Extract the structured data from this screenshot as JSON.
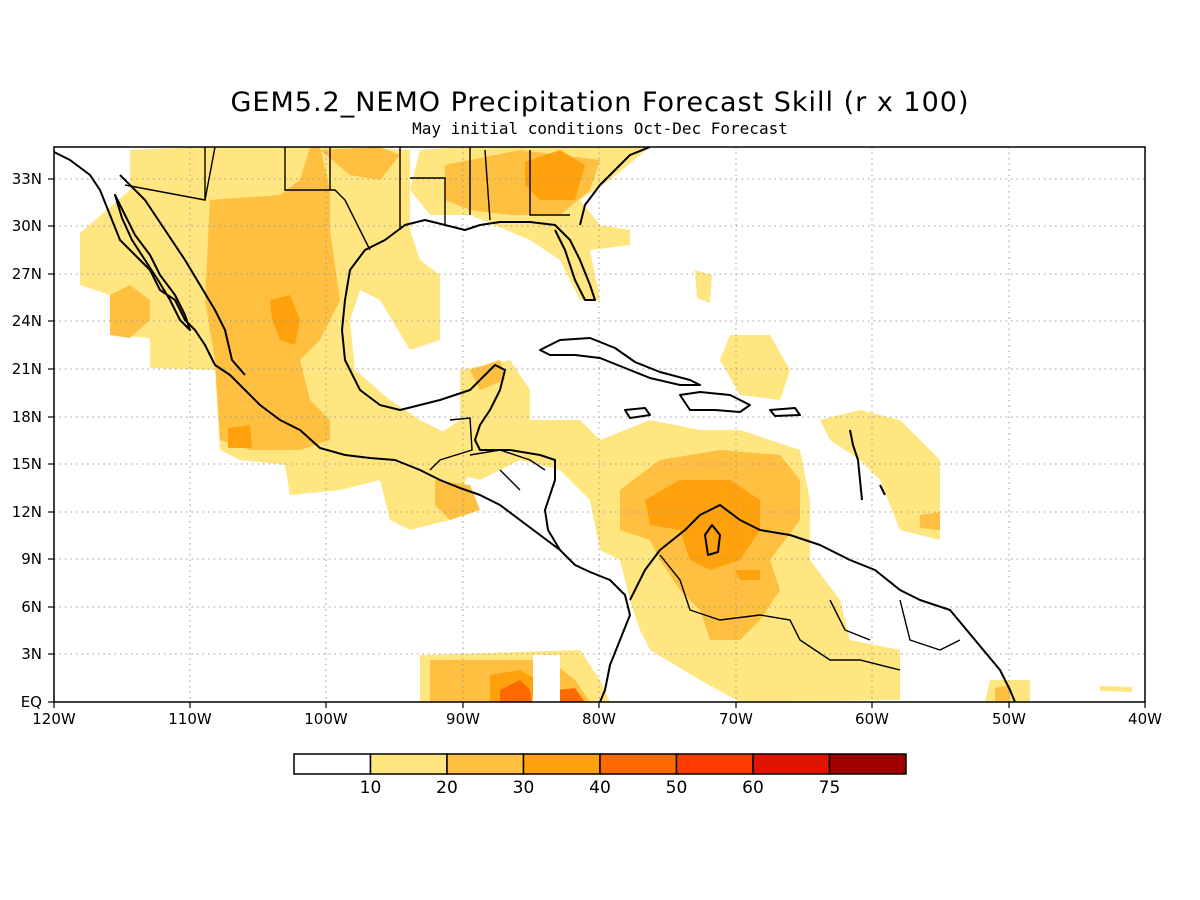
{
  "title": "GEM5.2_NEMO Precipitation Forecast Skill (r x 100)",
  "subtitle": "May initial conditions  Oct-Dec Forecast",
  "axes": {
    "x_ticks": [
      "120W",
      "110W",
      "100W",
      "90W",
      "80W",
      "70W",
      "60W",
      "50W",
      "40W"
    ],
    "y_ticks": [
      "EQ",
      "3N",
      "6N",
      "9N",
      "12N",
      "15N",
      "18N",
      "21N",
      "24N",
      "27N",
      "30N",
      "33N"
    ]
  },
  "colorbar": {
    "labels": [
      "10",
      "20",
      "30",
      "40",
      "50",
      "60",
      "75"
    ],
    "colors": [
      "#ffffff",
      "#ffe680",
      "#ffbf40",
      "#ffa00d",
      "#ff6a00",
      "#ff3c00",
      "#e01400",
      "#a00000"
    ]
  },
  "map_data": {
    "lon_range": [
      -120,
      -40
    ],
    "lat_range": [
      0,
      35
    ],
    "grid": true,
    "contour_levels": [
      10,
      20,
      30,
      40,
      50,
      60,
      75
    ]
  }
}
